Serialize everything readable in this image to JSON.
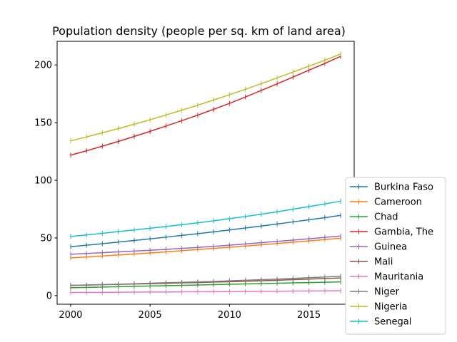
{
  "chart_data": {
    "type": "line",
    "title": "Population density (people per sq. km of land area)",
    "xlabel": "",
    "ylabel": "",
    "xlim": [
      1999.15,
      2017.85
    ],
    "ylim": [
      -7.5,
      220.5
    ],
    "xticks": [
      2000,
      2005,
      2010,
      2015
    ],
    "yticks": [
      0,
      50,
      100,
      150,
      200
    ],
    "legend_position": "right",
    "grid": false,
    "x": [
      2000,
      2001,
      2002,
      2003,
      2004,
      2005,
      2006,
      2007,
      2008,
      2009,
      2010,
      2011,
      2012,
      2013,
      2014,
      2015,
      2016,
      2017
    ],
    "series": [
      {
        "name": "Burkina Faso",
        "color": "#1f77b4",
        "values": [
          42.4,
          43.7,
          45.0,
          46.4,
          47.8,
          49.2,
          50.7,
          52.2,
          53.7,
          55.3,
          56.9,
          58.6,
          60.3,
          62.1,
          63.9,
          65.7,
          67.6,
          69.6
        ]
      },
      {
        "name": "Cameroon",
        "color": "#ff7f0e",
        "values": [
          32.7,
          33.5,
          34.4,
          35.2,
          36.1,
          37.0,
          37.9,
          38.9,
          39.9,
          40.9,
          41.9,
          42.9,
          44.0,
          45.2,
          46.3,
          47.4,
          48.6,
          49.7
        ]
      },
      {
        "name": "Chad",
        "color": "#2ca02c",
        "values": [
          6.8,
          7.1,
          7.4,
          7.7,
          8.0,
          8.3,
          8.6,
          8.9,
          9.2,
          9.5,
          9.8,
          10.1,
          10.4,
          10.7,
          11.0,
          11.3,
          11.6,
          11.9
        ]
      },
      {
        "name": "Gambia, The",
        "color": "#d62728",
        "values": [
          121.8,
          125.6,
          129.6,
          133.7,
          138.0,
          142.4,
          147.0,
          151.7,
          156.5,
          161.5,
          166.7,
          172.2,
          177.9,
          183.6,
          189.5,
          195.4,
          201.3,
          207.5
        ]
      },
      {
        "name": "Guinea",
        "color": "#9467bd",
        "values": [
          35.8,
          36.5,
          37.2,
          37.9,
          38.6,
          39.3,
          40.1,
          40.9,
          41.8,
          42.7,
          43.7,
          44.8,
          45.9,
          47.0,
          48.1,
          49.3,
          50.5,
          51.7
        ]
      },
      {
        "name": "Mali",
        "color": "#8c564b",
        "values": [
          8.8,
          9.1,
          9.4,
          9.7,
          10.0,
          10.3,
          10.6,
          11.0,
          11.3,
          11.7,
          12.0,
          12.4,
          12.8,
          13.3,
          13.8,
          14.3,
          14.8,
          15.3
        ]
      },
      {
        "name": "Mauritania",
        "color": "#e377c2",
        "values": [
          2.7,
          2.8,
          2.8,
          2.9,
          3.0,
          3.1,
          3.1,
          3.2,
          3.3,
          3.4,
          3.5,
          3.6,
          3.7,
          3.8,
          3.9,
          4.0,
          4.1,
          4.2
        ]
      },
      {
        "name": "Niger",
        "color": "#7f7f7f",
        "values": [
          8.9,
          9.2,
          9.6,
          9.9,
          10.3,
          10.7,
          11.1,
          11.5,
          11.9,
          12.3,
          12.8,
          13.3,
          13.8,
          14.3,
          14.9,
          15.5,
          16.1,
          16.8
        ]
      },
      {
        "name": "Nigeria",
        "color": "#bcbd22",
        "values": [
          134.2,
          137.6,
          141.2,
          144.8,
          148.6,
          152.5,
          156.6,
          160.8,
          165.1,
          169.6,
          174.2,
          178.9,
          183.8,
          188.8,
          193.8,
          199.0,
          204.1,
          209.5
        ]
      },
      {
        "name": "Senegal",
        "color": "#17becf",
        "values": [
          51.3,
          52.6,
          54.0,
          55.5,
          56.9,
          58.4,
          59.9,
          61.5,
          63.1,
          64.8,
          66.7,
          68.6,
          70.6,
          72.7,
          74.9,
          77.2,
          79.5,
          81.9
        ]
      }
    ]
  }
}
